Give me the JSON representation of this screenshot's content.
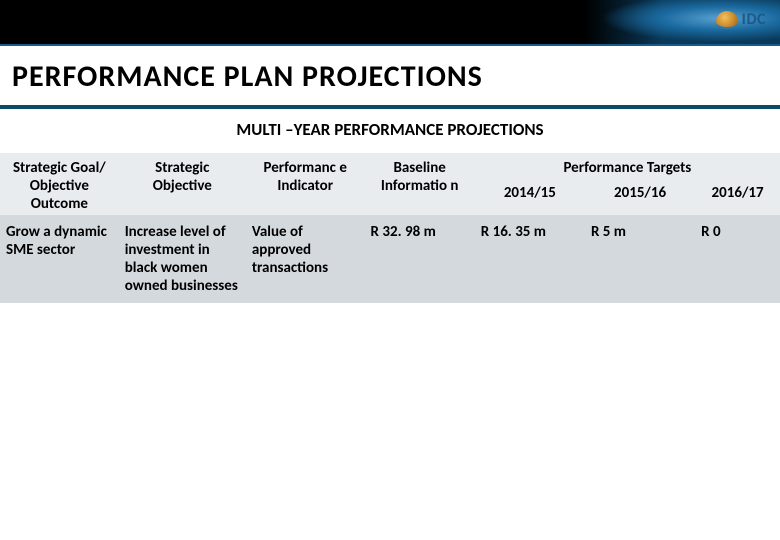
{
  "logo_text": "IDC",
  "main_title": "PERFORMANCE PLAN PROJECTIONS",
  "subtitle": "MULTI –YEAR PERFORMANCE PROJECTIONS",
  "headers": {
    "goal": "Strategic Goal/ Objective Outcome",
    "objective": "Strategic Objective",
    "indicator": "Performanc e Indicator",
    "baseline": "Baseline Informatio n",
    "targets": "Performance Targets",
    "y1": "2014/15",
    "y2": "2015/16",
    "y3": "2016/17"
  },
  "row": {
    "goal": "Grow a dynamic SME sector",
    "objective": "Increase level of investment in black women owned businesses",
    "indicator": "Value of approved transactions",
    "baseline": "R 32. 98 m",
    "y1": "R 16. 35 m",
    "y2": "R 5 m",
    "y3": "R 0"
  },
  "colors": {
    "header_bg": "#000000",
    "accent": "#0a4a6a",
    "thead_bg": "#e8ecef",
    "tbody_bg": "#d4d9de"
  }
}
